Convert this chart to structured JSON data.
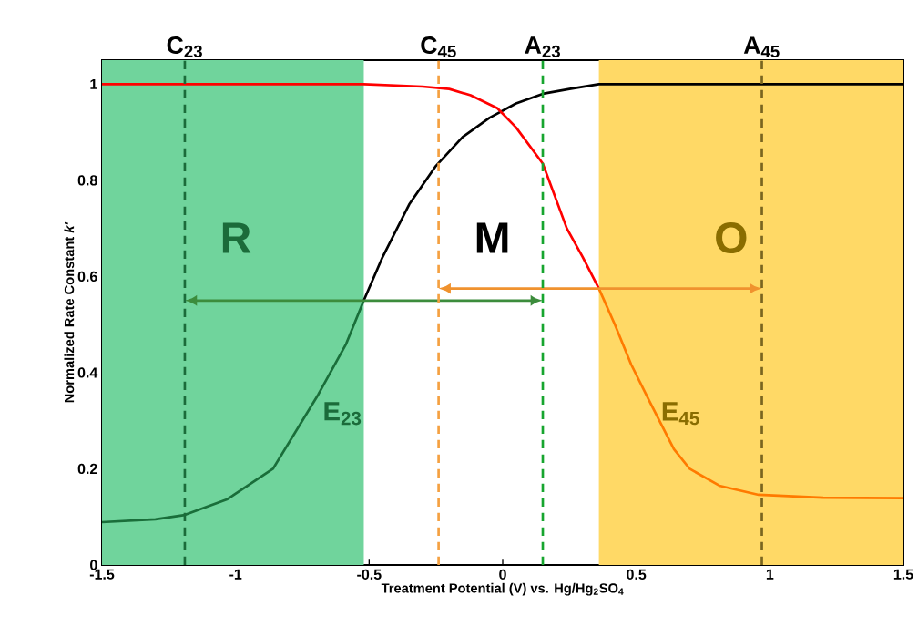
{
  "chart_data": {
    "type": "line",
    "xlabel": "Treatment Potential (V) vs. Hg/Hg$_{2}$SO$_{4}$",
    "ylabel": "Normalized Rate Constant *k'*",
    "xlim": [
      -1.5,
      1.5
    ],
    "ylim": [
      0,
      1.05
    ],
    "xticks": [
      -1.5,
      -1,
      -0.5,
      0,
      0.5,
      1,
      1.5
    ],
    "yticks": [
      0,
      0.2,
      0.4,
      0.6,
      0.8,
      1
    ],
    "grid": false,
    "line_style": "solid",
    "bands": [
      {
        "axis": "x",
        "from": -1.5,
        "to": -0.52,
        "color": "#70d49c"
      },
      {
        "axis": "x",
        "from": 0.36,
        "to": 1.5,
        "color": "#ffd966"
      }
    ],
    "ref_lines": [
      {
        "axis": "x",
        "value": -1.19,
        "label": "C$_{23}$",
        "color": "#1b6b3a",
        "line_style": "dashed"
      },
      {
        "axis": "x",
        "value": -0.24,
        "label": "C$_{45}$",
        "color": "#f5a040",
        "line_style": "dashed"
      },
      {
        "axis": "x",
        "value": 0.15,
        "label": "A$_{23}$",
        "color": "#17a52f",
        "line_style": "dashed"
      },
      {
        "axis": "x",
        "value": 0.97,
        "label": "A$_{45}$",
        "color": "#7a6520",
        "line_style": "dashed"
      }
    ],
    "series": [
      {
        "color": "#1a6e3a",
        "x": [
          -1.5,
          -1.3,
          -1.19,
          -1.03,
          -0.86,
          -0.69,
          -0.586,
          -0.52
        ],
        "values": [
          0.089,
          0.095,
          0.104,
          0.137,
          0.2,
          0.355,
          0.46,
          0.55
        ]
      },
      {
        "color": "#000000",
        "x": [
          -0.52,
          -0.45,
          -0.35,
          -0.25,
          -0.15,
          -0.05,
          0.05,
          0.15,
          0.25,
          0.36,
          1.5
        ],
        "values": [
          0.55,
          0.64,
          0.75,
          0.83,
          0.89,
          0.93,
          0.96,
          0.98,
          0.99,
          1.0,
          1.0
        ]
      },
      {
        "color": "#ff0000",
        "x": [
          -1.5,
          -0.52,
          -0.3,
          -0.2,
          -0.12,
          -0.02,
          0.05,
          0.15,
          0.24,
          0.3,
          0.36
        ],
        "values": [
          1.0,
          1.0,
          0.995,
          0.99,
          0.977,
          0.95,
          0.91,
          0.835,
          0.7,
          0.64,
          0.575
        ]
      },
      {
        "color": "#ff7a00",
        "x": [
          0.36,
          0.42,
          0.481,
          0.55,
          0.641,
          0.7,
          0.811,
          0.958,
          1.2,
          1.5
        ],
        "values": [
          0.575,
          0.5,
          0.417,
          0.34,
          0.241,
          0.2,
          0.165,
          0.146,
          0.14,
          0.139
        ]
      }
    ],
    "annotations": [
      "R",
      "M",
      "O",
      "E$_{23}$",
      "E$_{45}$"
    ]
  }
}
